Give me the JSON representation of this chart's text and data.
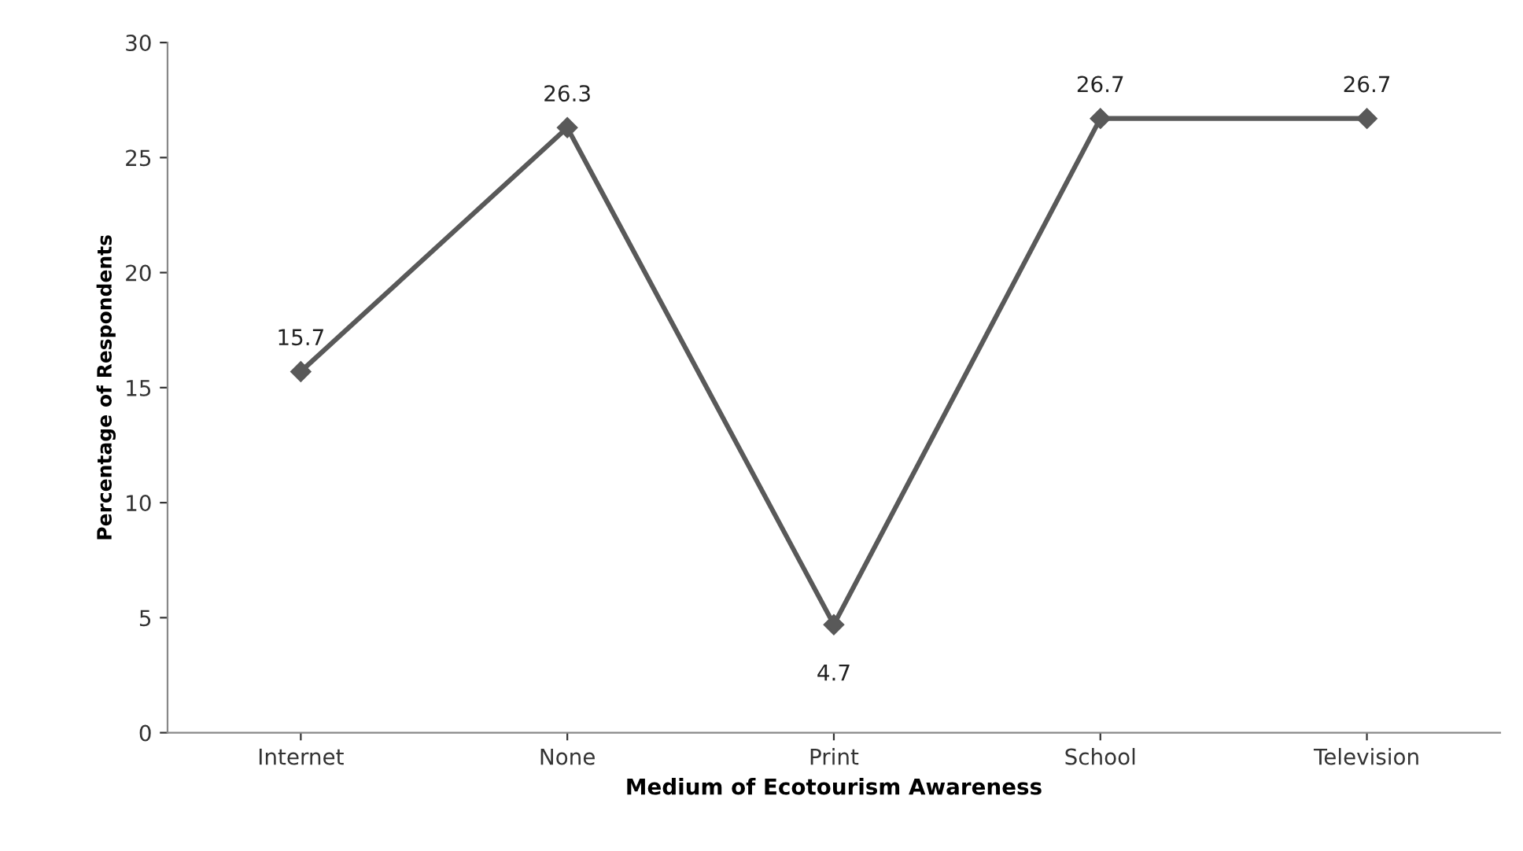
{
  "chart_data": {
    "type": "line",
    "xlabel": "Medium of Ecotourism Awareness",
    "ylabel": "Percentage of Respondents",
    "categories": [
      "Internet",
      "None",
      "Print",
      "School",
      "Television"
    ],
    "series": [
      {
        "color": "#595959",
        "values": [
          15.7,
          26.3,
          4.7,
          26.7,
          26.7
        ]
      }
    ],
    "ylim": [
      0,
      30
    ],
    "yticks": [
      0,
      5,
      10,
      15,
      20,
      25,
      30
    ],
    "grid": false,
    "legend": false,
    "marker": "diamond",
    "line_style": "solid",
    "data_labels": true
  }
}
